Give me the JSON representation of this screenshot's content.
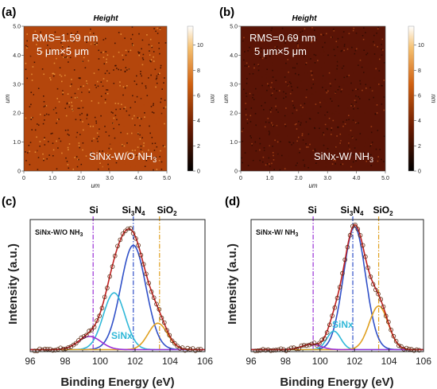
{
  "panels": {
    "a": "(a)",
    "b": "(b)",
    "c": "(c)",
    "d": "(d)"
  },
  "afm": [
    {
      "title": "Height",
      "rms": "RMS=1.59 nm",
      "scan": "5 μm×5 μm",
      "sample": "SiNx-W/O NH",
      "sample_sub": "3",
      "xlabel": "um",
      "ylabel": "um",
      "cbar_label": "nm",
      "xticks": [
        "0",
        "1.0",
        "2.0",
        "3.0",
        "4.0",
        "5.0"
      ],
      "yticks": [
        "0",
        "1.0",
        "2.0",
        "3.0",
        "4.0",
        "5.0"
      ],
      "cbar_ticks": [
        "0",
        "2",
        "4",
        "6",
        "8",
        "10"
      ],
      "base_color": "#b4460c",
      "speckle_color": "#f0a040"
    },
    {
      "title": "Height",
      "rms": "RMS=0.69 nm",
      "scan": "5 μm×5 μm",
      "sample": "SiNx-W/ NH",
      "sample_sub": "3",
      "xlabel": "um",
      "ylabel": "um",
      "cbar_label": "nm",
      "xticks": [
        "0",
        "1.0",
        "2.0",
        "3.0",
        "4.0",
        "5.0"
      ],
      "yticks": [
        "0",
        "1.0",
        "2.0",
        "3.0",
        "4.0",
        "5.0"
      ],
      "cbar_ticks": [
        "0",
        "2",
        "4",
        "6",
        "8",
        "10"
      ],
      "base_color": "#5a1406",
      "speckle_color": "#b04818"
    }
  ],
  "peak_labels": {
    "si": "Si",
    "si3n4_main": "Si",
    "si3n4_s1": "3",
    "si3n4_mid": "N",
    "si3n4_s2": "4",
    "sio2_main": "SiO",
    "sio2_sub": "2"
  },
  "colors": {
    "si": "#9b30d6",
    "si3n4": "#3050c8",
    "sio2": "#e0a020",
    "sinx": "#30b8d8",
    "envelope": "#c02020",
    "data_points": "#5a2a10"
  },
  "chart_data": [
    {
      "type": "line",
      "panel": "(c)",
      "inset_label": "SiNx-W/O NH",
      "inset_sub": "3",
      "component_label": "SiNx",
      "xlabel": "Binding Energy (eV)",
      "ylabel": "Intensity (a.u.)",
      "xlim": [
        96,
        106
      ],
      "xticks": [
        96,
        98,
        100,
        102,
        104,
        106
      ],
      "reference_lines": {
        "Si": 99.6,
        "Si3N4": 101.9,
        "SiO2": 103.4
      },
      "components": [
        {
          "center": 101.9,
          "height": 0.79,
          "sigma": 0.72,
          "color": "#3050c8"
        },
        {
          "center": 100.8,
          "height": 0.43,
          "sigma": 0.62,
          "color": "#30b8d8"
        },
        {
          "center": 103.3,
          "height": 0.2,
          "sigma": 0.55,
          "color": "#e0a020"
        },
        {
          "center": 99.4,
          "height": 0.1,
          "sigma": 0.65,
          "color": "#9b30d6"
        }
      ]
    },
    {
      "type": "line",
      "panel": "(d)",
      "inset_label": "SiNx-W/ NH",
      "inset_sub": "3",
      "component_label": "SiNx",
      "xlabel": "Binding Energy (eV)",
      "ylabel": "Intensity (a.u.)",
      "xlim": [
        96,
        106
      ],
      "xticks": [
        96,
        98,
        100,
        102,
        104,
        106
      ],
      "reference_lines": {
        "Si": 99.6,
        "Si3N4": 101.9,
        "SiO2": 103.4
      },
      "components": [
        {
          "center": 102.0,
          "height": 0.93,
          "sigma": 0.64,
          "color": "#3050c8"
        },
        {
          "center": 100.8,
          "height": 0.14,
          "sigma": 0.4,
          "color": "#30b8d8"
        },
        {
          "center": 103.4,
          "height": 0.33,
          "sigma": 0.55,
          "color": "#e0a020"
        },
        {
          "center": 99.5,
          "height": 0.04,
          "sigma": 0.55,
          "color": "#9b30d6"
        }
      ]
    }
  ]
}
